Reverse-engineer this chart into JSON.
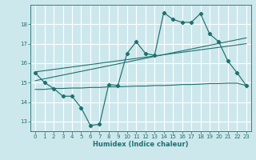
{
  "background_color": "#cde8ec",
  "grid_color": "#ffffff",
  "line_color": "#1e7070",
  "xlabel": "Humidex (Indice chaleur)",
  "xlim": [
    -0.5,
    23.5
  ],
  "ylim": [
    12.5,
    19.0
  ],
  "yticks": [
    13,
    14,
    15,
    16,
    17,
    18
  ],
  "xticks": [
    0,
    1,
    2,
    3,
    4,
    5,
    6,
    7,
    8,
    9,
    10,
    11,
    12,
    13,
    14,
    15,
    16,
    17,
    18,
    19,
    20,
    21,
    22,
    23
  ],
  "main_x": [
    0,
    1,
    2,
    3,
    4,
    5,
    6,
    7,
    8,
    9,
    10,
    11,
    12,
    13,
    14,
    15,
    16,
    17,
    18,
    19,
    20,
    21,
    22,
    23
  ],
  "main_y": [
    15.5,
    15.0,
    14.7,
    14.3,
    14.3,
    13.7,
    12.8,
    12.85,
    14.9,
    14.85,
    16.5,
    17.1,
    16.5,
    16.4,
    18.6,
    18.25,
    18.1,
    18.1,
    18.55,
    17.5,
    17.1,
    16.1,
    15.5,
    14.85
  ],
  "flat_x": [
    0,
    1,
    2,
    3,
    4,
    5,
    6,
    7,
    8,
    9,
    10,
    11,
    12,
    13,
    14,
    15,
    16,
    17,
    18,
    19,
    20,
    21,
    22,
    23
  ],
  "flat_y": [
    14.65,
    14.65,
    14.7,
    14.7,
    14.72,
    14.72,
    14.75,
    14.75,
    14.78,
    14.78,
    14.8,
    14.82,
    14.82,
    14.85,
    14.85,
    14.87,
    14.9,
    14.9,
    14.92,
    14.95,
    14.95,
    14.97,
    14.97,
    14.85
  ],
  "trend1_x": [
    0,
    23
  ],
  "trend1_y": [
    15.1,
    17.3
  ],
  "trend2_x": [
    0,
    23
  ],
  "trend2_y": [
    15.55,
    17.0
  ]
}
